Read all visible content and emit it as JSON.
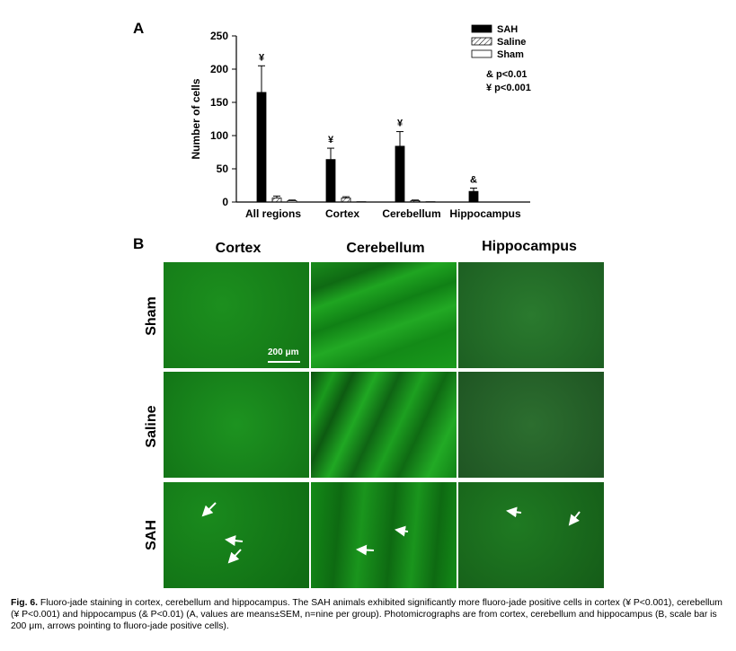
{
  "panel_a": {
    "letter": "A"
  },
  "panel_b": {
    "letter": "B"
  },
  "chart_data": {
    "type": "bar",
    "categories": [
      "All regions",
      "Cortex",
      "Cerebellum",
      "Hippocampus"
    ],
    "series": [
      {
        "name": "SAH",
        "values": [
          165,
          64,
          84,
          16
        ],
        "errors": [
          40,
          17,
          22,
          5
        ],
        "color": "#000000",
        "pattern": "solid"
      },
      {
        "name": "Saline",
        "values": [
          6,
          6,
          2,
          0
        ],
        "errors": [
          3,
          2,
          1,
          0
        ],
        "color": "#ffffff",
        "pattern": "hatch"
      },
      {
        "name": "Sham",
        "values": [
          2,
          0.5,
          0.5,
          0
        ],
        "errors": [
          1,
          0,
          0,
          0
        ],
        "color": "#ffffff",
        "pattern": "open"
      }
    ],
    "ylabel": "Number of cells",
    "ylim": [
      0,
      250
    ],
    "yticks": [
      0,
      50,
      100,
      150,
      200,
      250
    ],
    "annotations": [
      "¥",
      "¥",
      "¥",
      "&"
    ],
    "significance_notes": [
      "& p<0.01",
      "¥ p<0.001"
    ],
    "legend_position": "top-right"
  },
  "micrographs": {
    "columns": [
      "Cortex",
      "Cerebellum",
      "Hippocampus"
    ],
    "rows": [
      "Sham",
      "Saline",
      "SAH"
    ],
    "scale_bar": "200 μm",
    "colors": {
      "bright": "#1f9e1f",
      "mid": "#16801a",
      "dark": "#0e5a12",
      "dim": "#2a6b2a"
    }
  },
  "caption": {
    "label": "Fig. 6.",
    "text": " Fluoro-jade staining in cortex, cerebellum and hippocampus. The SAH animals exhibited significantly more fluoro-jade positive cells in cortex (¥ P<0.001), cerebellum (¥ P<0.001) and hippocampus (& P<0.01) (A, values are means±SEM, n=nine per group). Photomicrographs are from cortex, cerebellum and hippocampus (B, scale bar is 200 μm, arrows pointing to fluoro-jade positive cells)."
  }
}
